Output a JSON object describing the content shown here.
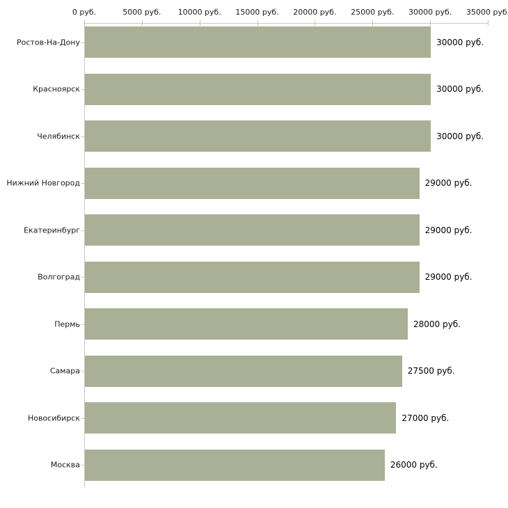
{
  "chart_data": {
    "type": "bar",
    "orientation": "horizontal",
    "categories": [
      "Ростов-На-Дону",
      "Красноярск",
      "Челябинск",
      "Нижний Новгород",
      "Екатеринбург",
      "Волгоград",
      "Пермь",
      "Самара",
      "Новосибирск",
      "Москва"
    ],
    "values": [
      30000,
      30000,
      30000,
      29000,
      29000,
      29000,
      28000,
      27500,
      27000,
      26000
    ],
    "value_labels": [
      "30000 руб.",
      "30000 руб.",
      "30000 руб.",
      "29000 руб.",
      "29000 руб.",
      "29000 руб.",
      "28000 руб.",
      "27500 руб.",
      "27000 руб.",
      "26000 руб."
    ],
    "x_tick_labels": [
      "0 руб.",
      "5000 руб.",
      "10000 руб.",
      "15000 руб.",
      "20000 руб.",
      "25000 руб.",
      "30000 руб.",
      "35000 руб."
    ],
    "x_tick_values": [
      0,
      5000,
      10000,
      15000,
      20000,
      25000,
      30000,
      35000
    ],
    "xlim": [
      0,
      35000
    ],
    "unit": "руб.",
    "grid": false,
    "legend": false,
    "colors": {
      "bar": "#aab096",
      "axis_line": "#c8c8c2",
      "tick_mark": "#c9c5a0",
      "axis_text": "#1a1a1a",
      "value_text": "#000000",
      "background": "#ffffff"
    }
  }
}
